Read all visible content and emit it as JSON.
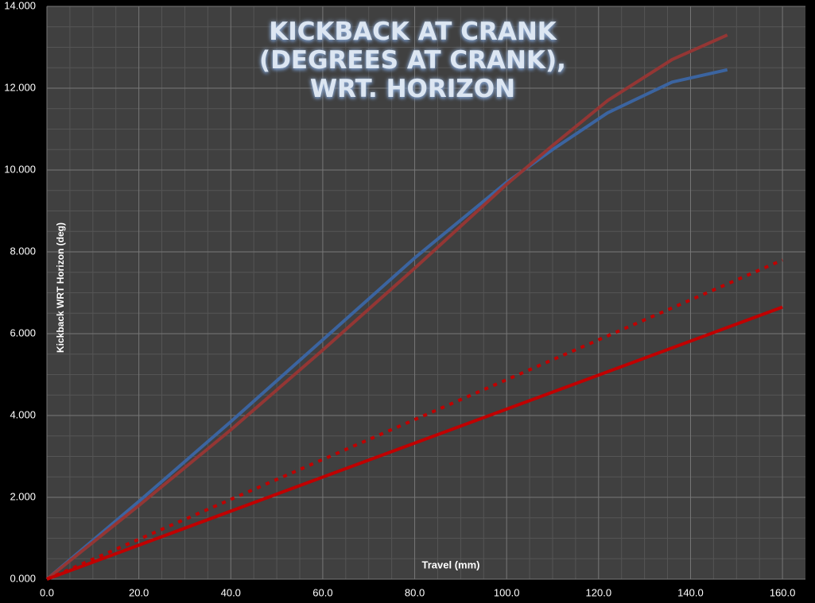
{
  "chart_data": {
    "type": "line",
    "title": "KICKBACK AT CRANK\n(DEGREES AT CRANK),\nWRT. HORIZON",
    "x_label": "Travel (mm)",
    "y_label": "Kickback WRT Horizon (deg)",
    "xlim": [
      0,
      165
    ],
    "ylim": [
      0,
      14
    ],
    "xticks": [
      {
        "value": 0,
        "label": "0.0"
      },
      {
        "value": 20,
        "label": "20.0"
      },
      {
        "value": 40,
        "label": "40.0"
      },
      {
        "value": 60,
        "label": "60.0"
      },
      {
        "value": 80,
        "label": "80.0"
      },
      {
        "value": 100,
        "label": "100.0"
      },
      {
        "value": 120,
        "label": "120.0"
      },
      {
        "value": 140,
        "label": "140.0"
      },
      {
        "value": 160,
        "label": "160.0"
      }
    ],
    "yticks": [
      {
        "value": 0,
        "label": "0.000"
      },
      {
        "value": 2,
        "label": "2.000"
      },
      {
        "value": 4,
        "label": "4.000"
      },
      {
        "value": 6,
        "label": "6.000"
      },
      {
        "value": 8,
        "label": "8.000"
      },
      {
        "value": 10,
        "label": "10.000"
      },
      {
        "value": 12,
        "label": "12.000"
      },
      {
        "value": 14,
        "label": "14.000"
      }
    ],
    "grid": true,
    "series": [
      {
        "color": "#3b64a0",
        "style": "solid",
        "x": [
          0,
          20,
          40,
          60,
          80,
          100,
          110,
          122,
          136,
          148
        ],
        "values": [
          0,
          1.9,
          3.85,
          5.85,
          7.85,
          9.7,
          10.5,
          11.4,
          12.15,
          12.45
        ]
      },
      {
        "color": "#943634",
        "style": "solid",
        "x": [
          0,
          20,
          40,
          60,
          80,
          100,
          110,
          122,
          136,
          148
        ],
        "values": [
          0,
          1.8,
          3.65,
          5.6,
          7.6,
          9.65,
          10.6,
          11.7,
          12.7,
          13.3
        ]
      },
      {
        "color": "#c00000",
        "style": "dotted",
        "x": [
          0,
          160
        ],
        "values": [
          0,
          7.8
        ]
      },
      {
        "color": "#c00000",
        "style": "solid",
        "x": [
          0,
          160
        ],
        "values": [
          0,
          6.65
        ]
      }
    ]
  }
}
